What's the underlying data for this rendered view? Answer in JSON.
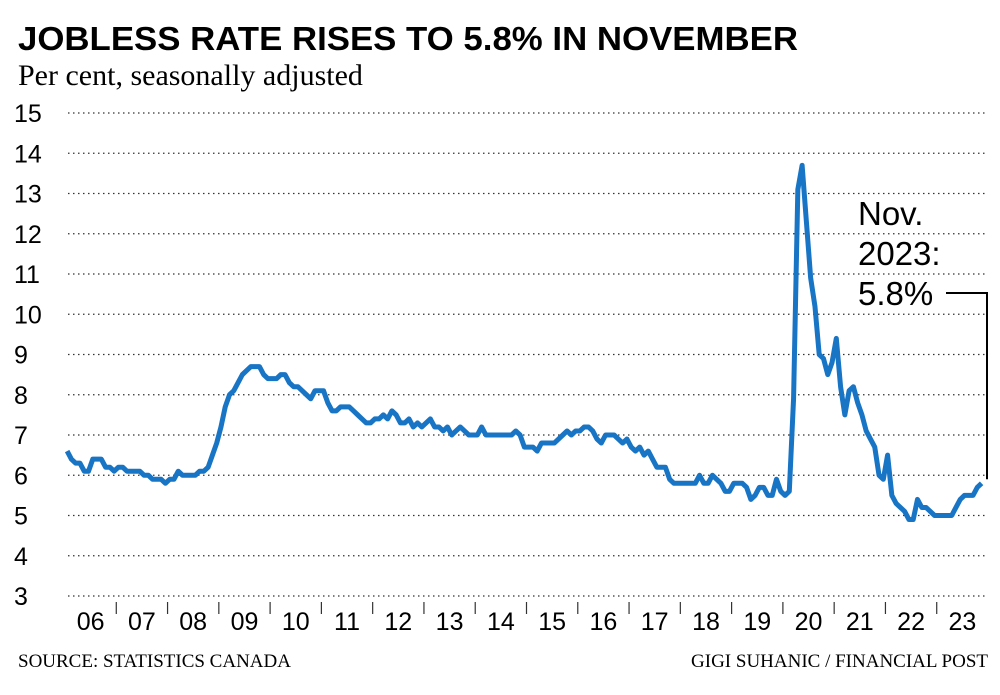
{
  "chart_data": {
    "type": "line",
    "title": "JOBLESS RATE RISES TO 5.8% IN NOVEMBER",
    "subtitle": "Per cent, seasonally adjusted",
    "source": "SOURCE: STATISTICS CANADA",
    "credit": "GIGI SUHANIC / FINANCIAL POST",
    "annotation": [
      "Nov.",
      "2023:",
      "5.8%"
    ],
    "ylim": [
      3,
      15
    ],
    "yticks": [
      3,
      4,
      5,
      6,
      7,
      8,
      9,
      10,
      11,
      12,
      13,
      14,
      15
    ],
    "grid": true,
    "categories": [
      null,
      null,
      null,
      null,
      null,
      null,
      "06",
      null,
      null,
      null,
      null,
      null,
      null,
      null,
      null,
      null,
      null,
      null,
      "07",
      null,
      null,
      null,
      null,
      null,
      null,
      null,
      null,
      null,
      null,
      null,
      "08",
      null,
      null,
      null,
      null,
      null,
      null,
      null,
      null,
      null,
      null,
      null,
      "09",
      null,
      null,
      null,
      null,
      null,
      null,
      null,
      null,
      null,
      null,
      null,
      "10",
      null,
      null,
      null,
      null,
      null,
      null,
      null,
      null,
      null,
      null,
      null,
      "11",
      null,
      null,
      null,
      null,
      null,
      null,
      null,
      null,
      null,
      null,
      null,
      "12",
      null,
      null,
      null,
      null,
      null,
      null,
      null,
      null,
      null,
      null,
      null,
      "13",
      null,
      null,
      null,
      null,
      null,
      null,
      null,
      null,
      null,
      null,
      null,
      "14",
      null,
      null,
      null,
      null,
      null,
      null,
      null,
      null,
      null,
      null,
      null,
      "15",
      null,
      null,
      null,
      null,
      null,
      null,
      null,
      null,
      null,
      null,
      null,
      "16",
      null,
      null,
      null,
      null,
      null,
      null,
      null,
      null,
      null,
      null,
      null,
      "17",
      null,
      null,
      null,
      null,
      null,
      null,
      null,
      null,
      null,
      null,
      null,
      "18",
      null,
      null,
      null,
      null,
      null,
      null,
      null,
      null,
      null,
      null,
      null,
      "19",
      null,
      null,
      null,
      null,
      null,
      null,
      null,
      null,
      null,
      null,
      null,
      "20",
      null,
      null,
      null,
      null,
      null,
      null,
      null,
      null,
      null,
      null,
      null,
      "21",
      null,
      null,
      null,
      null,
      null,
      null,
      null,
      null,
      null,
      null,
      null,
      "22",
      null,
      null,
      null,
      null,
      null,
      null,
      null,
      null,
      null,
      null,
      null,
      "23",
      null,
      null,
      null,
      null
    ],
    "series": [
      {
        "color": "#1874c4",
        "values": [
          6.6,
          6.4,
          6.3,
          6.3,
          6.1,
          6.1,
          6.4,
          6.4,
          6.4,
          6.2,
          6.2,
          6.1,
          6.2,
          6.2,
          6.1,
          6.1,
          6.1,
          6.1,
          6.0,
          6.0,
          5.9,
          5.9,
          5.9,
          5.8,
          5.9,
          5.9,
          6.1,
          6.0,
          6.0,
          6.0,
          6.0,
          6.1,
          6.1,
          6.2,
          6.5,
          6.8,
          7.2,
          7.7,
          8.0,
          8.1,
          8.3,
          8.5,
          8.6,
          8.7,
          8.7,
          8.7,
          8.5,
          8.4,
          8.4,
          8.4,
          8.5,
          8.5,
          8.3,
          8.2,
          8.2,
          8.1,
          8.0,
          7.9,
          8.1,
          8.1,
          8.1,
          7.8,
          7.6,
          7.6,
          7.7,
          7.7,
          7.7,
          7.6,
          7.5,
          7.4,
          7.3,
          7.3,
          7.4,
          7.4,
          7.5,
          7.4,
          7.6,
          7.5,
          7.3,
          7.3,
          7.4,
          7.2,
          7.3,
          7.2,
          7.3,
          7.4,
          7.2,
          7.2,
          7.1,
          7.2,
          7.0,
          7.1,
          7.2,
          7.1,
          7.0,
          7.0,
          7.0,
          7.2,
          7.0,
          7.0,
          7.0,
          7.0,
          7.0,
          7.0,
          7.0,
          7.1,
          7.0,
          6.7,
          6.7,
          6.7,
          6.6,
          6.8,
          6.8,
          6.8,
          6.8,
          6.9,
          7.0,
          7.1,
          7.0,
          7.1,
          7.1,
          7.2,
          7.2,
          7.1,
          6.9,
          6.8,
          7.0,
          7.0,
          7.0,
          6.9,
          6.8,
          6.9,
          6.7,
          6.6,
          6.7,
          6.5,
          6.6,
          6.4,
          6.2,
          6.2,
          6.2,
          5.9,
          5.8,
          5.8,
          5.8,
          5.8,
          5.8,
          5.8,
          6.0,
          5.8,
          5.8,
          6.0,
          5.9,
          5.8,
          5.6,
          5.6,
          5.8,
          5.8,
          5.8,
          5.7,
          5.4,
          5.5,
          5.7,
          5.7,
          5.5,
          5.5,
          5.9,
          5.6,
          5.5,
          5.6,
          7.9,
          13.1,
          13.7,
          12.3,
          10.9,
          10.2,
          9.0,
          8.9,
          8.5,
          8.8,
          9.4,
          8.2,
          7.5,
          8.1,
          8.2,
          7.8,
          7.5,
          7.1,
          6.9,
          6.7,
          6.0,
          5.9,
          6.5,
          5.5,
          5.3,
          5.2,
          5.1,
          4.9,
          4.9,
          5.4,
          5.2,
          5.2,
          5.1,
          5.0,
          5.0,
          5.0,
          5.0,
          5.0,
          5.2,
          5.4,
          5.5,
          5.5,
          5.5,
          5.7,
          5.8
        ]
      }
    ]
  }
}
